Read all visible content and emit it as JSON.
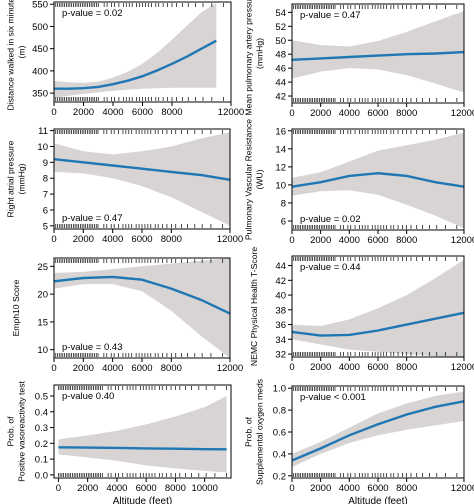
{
  "colors": {
    "line": "#1f77b4",
    "band": "#d9d4d4",
    "frame": "#000000",
    "rug": "#000000"
  },
  "x_axis_label": "Altitude (feet)",
  "chart_data": [
    {
      "type": "line",
      "panel": "top-left",
      "ylabel": [
        "Distance walked in six minutes",
        "(m)"
      ],
      "xlim": [
        0,
        12000
      ],
      "ylim": [
        330,
        555
      ],
      "xticks": [
        0,
        2000,
        4000,
        6000,
        8000,
        12000
      ],
      "yticks": [
        350,
        400,
        450,
        500,
        550
      ],
      "annotation": "p-value = 0.02",
      "annotation_place": "top-left",
      "x": [
        0,
        1000,
        2000,
        3000,
        4000,
        5000,
        6000,
        7000,
        8000,
        9000,
        10000,
        11000
      ],
      "fit": [
        360,
        360,
        361,
        364,
        370,
        378,
        388,
        401,
        416,
        432,
        450,
        468
      ],
      "lower": [
        340,
        344,
        348,
        352,
        355,
        358,
        360,
        361,
        362,
        362,
        362,
        362
      ],
      "upper": [
        378,
        374,
        373,
        376,
        385,
        398,
        416,
        441,
        470,
        502,
        532,
        553
      ]
    },
    {
      "type": "line",
      "panel": "top-right",
      "ylabel": [
        "Mean pulmonary artery pressure",
        "(mmHg)"
      ],
      "xlim": [
        0,
        12000
      ],
      "ylim": [
        41,
        55.2
      ],
      "xticks": [
        0,
        2000,
        4000,
        6000,
        8000,
        12000
      ],
      "yticks": [
        42,
        44,
        46,
        48,
        50,
        52,
        54
      ],
      "annotation": "p-value = 0.47",
      "annotation_place": "top-left",
      "x": [
        0,
        2000,
        4000,
        6000,
        8000,
        10000,
        12000
      ],
      "fit": [
        47.2,
        47.4,
        47.6,
        47.8,
        48.0,
        48.1,
        48.3
      ],
      "lower": [
        44.5,
        45.5,
        46.0,
        45.8,
        45.0,
        43.8,
        42.5
      ],
      "upper": [
        50.0,
        49.3,
        49.1,
        49.9,
        51.2,
        52.7,
        54.2
      ]
    },
    {
      "type": "line",
      "panel": "middle-left",
      "ylabel": [
        "Right atrial pressure",
        "(mmHg)"
      ],
      "xlim": [
        0,
        12000
      ],
      "ylim": [
        4.8,
        11.1
      ],
      "xticks": [
        0,
        2000,
        4000,
        6000,
        8000,
        12000
      ],
      "yticks": [
        5,
        6,
        7,
        8,
        9,
        10,
        11
      ],
      "annotation": "p-value = 0.47",
      "annotation_place": "bottom-left",
      "x": [
        0,
        2000,
        4000,
        6000,
        8000,
        10000,
        12000
      ],
      "fit": [
        9.2,
        9.0,
        8.8,
        8.6,
        8.4,
        8.2,
        7.9
      ],
      "lower": [
        8.4,
        8.3,
        8.0,
        7.5,
        6.8,
        5.9,
        5.0
      ],
      "upper": [
        10.2,
        9.7,
        9.5,
        9.7,
        10.0,
        10.5,
        10.9
      ]
    },
    {
      "type": "line",
      "panel": "middle-right",
      "ylabel": [
        "Pulmonary Vascular Resistance",
        "(WU)"
      ],
      "xlim": [
        0,
        12000
      ],
      "ylim": [
        5,
        16.2
      ],
      "xticks": [
        0,
        2000,
        4000,
        6000,
        8000,
        12000
      ],
      "yticks": [
        6,
        8,
        10,
        12,
        14,
        16
      ],
      "annotation": "p-value = 0.02",
      "annotation_place": "bottom-left",
      "x": [
        0,
        2000,
        4000,
        6000,
        8000,
        10000,
        12000
      ],
      "fit": [
        9.8,
        10.3,
        11.0,
        11.3,
        11.0,
        10.3,
        9.8
      ],
      "lower": [
        8.8,
        9.3,
        9.4,
        8.9,
        7.8,
        6.6,
        5.2
      ],
      "upper": [
        10.8,
        11.4,
        12.6,
        13.8,
        14.4,
        15.0,
        15.8
      ]
    },
    {
      "type": "line",
      "panel": "lower-left",
      "ylabel": [
        "Emph10 Score"
      ],
      "xlim": [
        0,
        12000
      ],
      "ylim": [
        8.5,
        26.5
      ],
      "xticks": [
        0,
        2000,
        4000,
        6000,
        8000,
        12000
      ],
      "yticks": [
        10,
        15,
        20,
        25
      ],
      "annotation": "p-value = 0.43",
      "annotation_place": "bottom-left",
      "x": [
        0,
        2000,
        4000,
        6000,
        8000,
        10000,
        12000
      ],
      "fit": [
        22.3,
        22.9,
        23.1,
        22.6,
        21.0,
        19.0,
        16.5
      ],
      "lower": [
        21.0,
        21.8,
        21.8,
        20.5,
        17.0,
        12.5,
        8.5
      ],
      "upper": [
        23.8,
        24.0,
        24.5,
        25.0,
        25.5,
        26.0,
        26.5
      ]
    },
    {
      "type": "line",
      "panel": "lower-right",
      "ylabel": [
        "NEMC Physical Health T-Score"
      ],
      "xlim": [
        0,
        12000
      ],
      "ylim": [
        31.6,
        45.3
      ],
      "xticks": [
        0,
        2000,
        4000,
        6000,
        8000,
        12000
      ],
      "yticks": [
        32,
        34,
        36,
        38,
        40,
        42,
        44
      ],
      "annotation": "p-value = 0.44",
      "annotation_place": "top-left",
      "x": [
        0,
        2000,
        4000,
        6000,
        8000,
        10000,
        12000
      ],
      "fit": [
        35.0,
        34.5,
        34.6,
        35.2,
        36.0,
        36.8,
        37.6
      ],
      "lower": [
        34.0,
        33.3,
        32.6,
        32.3,
        32.0,
        31.7,
        31.5
      ],
      "upper": [
        36.0,
        35.8,
        36.7,
        38.2,
        40.0,
        42.3,
        44.8
      ]
    },
    {
      "type": "line",
      "panel": "bottom-left",
      "ylabel": [
        "Prob. of",
        "Positive vasoreactivity test"
      ],
      "xlabel": "Altitude (feet)",
      "xlim": [
        -300,
        11800
      ],
      "ylim": [
        -0.02,
        0.57
      ],
      "xticks": [
        0,
        2000,
        4000,
        6000,
        8000,
        10000
      ],
      "yticks": [
        0.0,
        0.1,
        0.2,
        0.3,
        0.4,
        0.5
      ],
      "ytick_labels": [
        "0.0",
        "0.1",
        "0.2",
        "0.3",
        "0.4",
        "0.5"
      ],
      "annotation": "p-value 0.40",
      "annotation_place": "top-left",
      "x": [
        0,
        2000,
        4000,
        6000,
        8000,
        10000,
        11500
      ],
      "fit": [
        0.175,
        0.173,
        0.171,
        0.168,
        0.166,
        0.163,
        0.162
      ],
      "lower": [
        0.13,
        0.11,
        0.09,
        0.06,
        0.04,
        0.025,
        0.015
      ],
      "upper": [
        0.225,
        0.25,
        0.28,
        0.32,
        0.37,
        0.43,
        0.5
      ]
    },
    {
      "type": "line",
      "panel": "bottom-right",
      "ylabel": [
        "Prob. of",
        "Supplemental oxygen meds"
      ],
      "xlabel": "Altitude (feet)",
      "xlim": [
        0,
        12000
      ],
      "ylim": [
        0.18,
        1.02
      ],
      "xticks": [
        0,
        2000,
        4000,
        6000,
        8000,
        12000
      ],
      "yticks": [
        0.2,
        0.4,
        0.6,
        0.8,
        1.0
      ],
      "ytick_labels": [
        "0.2",
        "0.4",
        "0.6",
        "0.8",
        "1.0"
      ],
      "annotation": "p-value < 0.001",
      "annotation_place": "top-left",
      "x": [
        0,
        2000,
        4000,
        6000,
        8000,
        10000,
        12000
      ],
      "fit": [
        0.34,
        0.45,
        0.57,
        0.67,
        0.76,
        0.83,
        0.88
      ],
      "lower": [
        0.28,
        0.4,
        0.5,
        0.57,
        0.62,
        0.66,
        0.7
      ],
      "upper": [
        0.4,
        0.51,
        0.64,
        0.77,
        0.86,
        0.93,
        0.97
      ]
    }
  ]
}
